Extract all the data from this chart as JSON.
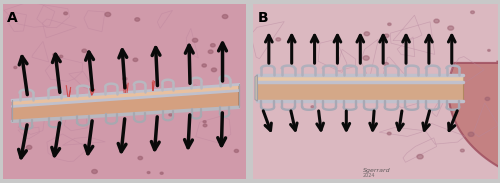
{
  "figsize": [
    5.0,
    1.83
  ],
  "dpi": 100,
  "panel_A_label": "A",
  "panel_B_label": "B",
  "label_fontsize": 10,
  "label_fontweight": "bold",
  "bg_pink_light": "#e8c0c8",
  "bg_pink_mid": "#d4909e",
  "bg_pink_dark": "#c07888",
  "staple_silver": "#c8c8cc",
  "staple_dark": "#888890",
  "bar_fill": "#d4a0a0",
  "bar_top": "#e0b0a8",
  "arrow_color": "#111111",
  "border_gray": "#b0b0b0",
  "tissue_leak_color": "#cc8888",
  "signature": "Sgerrard",
  "lobe_curve_color": "#c07880"
}
